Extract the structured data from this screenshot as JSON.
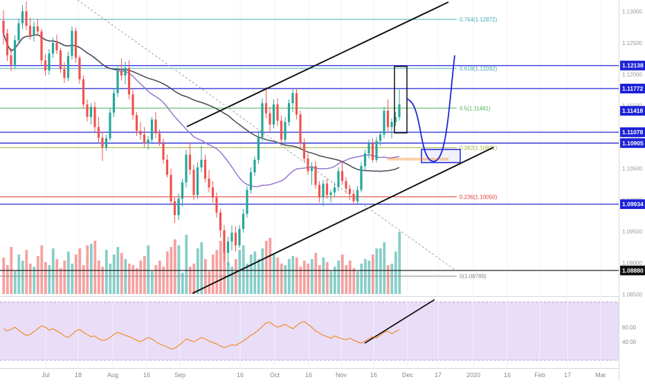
{
  "colors": {
    "up": "#26a69a",
    "down": "#ef5350",
    "ma_fast": "#9575cd",
    "ma_slow": "#434651",
    "hline": "#1e22d6",
    "rsi_line": "#f57c00",
    "rsi_bg": "#e9ddf7",
    "fib_764": "#40a9b5",
    "fib_618": "#40a9b5",
    "fib_5": "#4caf50",
    "fib_382": "#a5b43a",
    "fib_236": "#e53935",
    "fib_0": "#888888"
  },
  "chart_data": {
    "type": "candlestick",
    "instrument_hint": "EUR/USD daily",
    "price_axis": {
      "range": [
        1.0845,
        1.1318
      ],
      "ticks": [
        "1.13000",
        "1.12500",
        "1.12000",
        "1.11500",
        "1.11000",
        "1.10500",
        "1.10000",
        "1.09500",
        "1.09000",
        "1.08500"
      ]
    },
    "time_axis": {
      "labels": [
        "Jul",
        "18",
        "Aug",
        "16",
        "Sep",
        "16",
        "Oct",
        "16",
        "Nov",
        "16",
        "Dec",
        "17",
        "2020",
        "16",
        "Feb",
        "17",
        "Mar",
        "17"
      ]
    },
    "price_labels": [
      "1.12138",
      "1.11772",
      "1.11418",
      "1.11078",
      "1.10905",
      "1.09934",
      "1.08880"
    ],
    "horizontal_lines": [
      1.12138,
      1.11772,
      1.11078,
      1.10905,
      1.09934,
      1.0888
    ],
    "fibonacci": [
      {
        "label": "0.764(1.12872)",
        "level": 1.12872,
        "color_key": "fib_764"
      },
      {
        "label": "0.618(1.12092)",
        "level": 1.12092,
        "color_key": "fib_618"
      },
      {
        "label": "0.5(1.11461)",
        "level": 1.11461,
        "color_key": "fib_5"
      },
      {
        "label": "0.382(1.10831)",
        "level": 1.10831,
        "color_key": "fib_382"
      },
      {
        "label": "0.236(1.10050)",
        "level": 1.1005,
        "color_key": "fib_236"
      },
      {
        "label": "0(1.08789)",
        "level": 1.08789,
        "color_key": "fib_0"
      }
    ],
    "candles": [
      [
        1.1285,
        1.1302,
        1.1247,
        1.1265
      ],
      [
        1.1265,
        1.1272,
        1.1221,
        1.123
      ],
      [
        1.123,
        1.1242,
        1.1205,
        1.1215
      ],
      [
        1.1215,
        1.1262,
        1.1208,
        1.1254
      ],
      [
        1.1254,
        1.1288,
        1.1248,
        1.1281
      ],
      [
        1.1281,
        1.131,
        1.1272,
        1.13
      ],
      [
        1.13,
        1.1316,
        1.127,
        1.1277
      ],
      [
        1.1277,
        1.129,
        1.1255,
        1.1262
      ],
      [
        1.1262,
        1.1284,
        1.1252,
        1.1276
      ],
      [
        1.1276,
        1.1288,
        1.1262,
        1.1268
      ],
      [
        1.1268,
        1.1272,
        1.1215,
        1.1222
      ],
      [
        1.1222,
        1.1232,
        1.1198,
        1.1206
      ],
      [
        1.1206,
        1.124,
        1.1199,
        1.1233
      ],
      [
        1.1233,
        1.1258,
        1.1226,
        1.125
      ],
      [
        1.125,
        1.1263,
        1.1232,
        1.1238
      ],
      [
        1.1238,
        1.1242,
        1.1202,
        1.1208
      ],
      [
        1.1208,
        1.1219,
        1.1186,
        1.1194
      ],
      [
        1.1194,
        1.1236,
        1.1189,
        1.1229
      ],
      [
        1.1229,
        1.1276,
        1.1223,
        1.1269
      ],
      [
        1.1269,
        1.1274,
        1.1218,
        1.1226
      ],
      [
        1.1226,
        1.123,
        1.1185,
        1.1192
      ],
      [
        1.1192,
        1.1198,
        1.1145,
        1.1152
      ],
      [
        1.1152,
        1.116,
        1.1125,
        1.1132
      ],
      [
        1.1132,
        1.1154,
        1.112,
        1.1148
      ],
      [
        1.1148,
        1.1156,
        1.1108,
        1.1116
      ],
      [
        1.1116,
        1.1132,
        1.109,
        1.1099
      ],
      [
        1.1099,
        1.1108,
        1.1062,
        1.1084
      ],
      [
        1.1084,
        1.1104,
        1.1078,
        1.1098
      ],
      [
        1.1098,
        1.1146,
        1.1094,
        1.1139
      ],
      [
        1.1139,
        1.1178,
        1.1132,
        1.117
      ],
      [
        1.117,
        1.1212,
        1.1164,
        1.1205
      ],
      [
        1.1205,
        1.1225,
        1.119,
        1.1198
      ],
      [
        1.1198,
        1.122,
        1.1184,
        1.121
      ],
      [
        1.121,
        1.1222,
        1.116,
        1.1168
      ],
      [
        1.1168,
        1.1176,
        1.1128,
        1.1135
      ],
      [
        1.1135,
        1.114,
        1.1102,
        1.111
      ],
      [
        1.111,
        1.1124,
        1.1096,
        1.1104
      ],
      [
        1.1104,
        1.1116,
        1.1084,
        1.109
      ],
      [
        1.109,
        1.1102,
        1.108,
        1.1096
      ],
      [
        1.1096,
        1.1132,
        1.1092,
        1.1128
      ],
      [
        1.1128,
        1.114,
        1.1098,
        1.1106
      ],
      [
        1.1106,
        1.1112,
        1.1086,
        1.1092
      ],
      [
        1.1092,
        1.1098,
        1.1058,
        1.1064
      ],
      [
        1.1064,
        1.1072,
        1.1036,
        1.104
      ],
      [
        1.104,
        1.105,
        1.0992,
        1.0998
      ],
      [
        1.0998,
        1.1004,
        1.0964,
        1.0976
      ],
      [
        1.0976,
        1.101,
        1.0968,
        1.1002
      ],
      [
        1.1002,
        1.1034,
        1.099,
        1.1028
      ],
      [
        1.1028,
        1.108,
        1.102,
        1.1072
      ],
      [
        1.1072,
        1.1092,
        1.104,
        1.1048
      ],
      [
        1.1048,
        1.1056,
        1.1,
        1.1008
      ],
      [
        1.1008,
        1.106,
        1.1002,
        1.1052
      ],
      [
        1.1052,
        1.1086,
        1.1044,
        1.1064
      ],
      [
        1.1064,
        1.1072,
        1.1028,
        1.1034
      ],
      [
        1.1034,
        1.1048,
        1.1012,
        1.102
      ],
      [
        1.102,
        1.103,
        1.0996,
        1.1004
      ],
      [
        1.1004,
        1.1012,
        1.0972,
        1.098
      ],
      [
        1.098,
        1.0986,
        1.094,
        1.0952
      ],
      [
        1.0952,
        1.096,
        1.0904,
        1.0916
      ],
      [
        1.0916,
        1.0942,
        1.0896,
        1.0934
      ],
      [
        1.0934,
        1.096,
        1.092,
        1.0948
      ],
      [
        1.0948,
        1.0958,
        1.0918,
        1.0928
      ],
      [
        1.0928,
        1.096,
        1.0924,
        1.0954
      ],
      [
        1.0954,
        1.0986,
        1.0948,
        1.0978
      ],
      [
        1.0978,
        1.1022,
        1.0972,
        1.1016
      ],
      [
        1.1016,
        1.1052,
        1.101,
        1.1044
      ],
      [
        1.1044,
        1.107,
        1.1038,
        1.1064
      ],
      [
        1.1064,
        1.111,
        1.1058,
        1.11
      ],
      [
        1.11,
        1.1162,
        1.1094,
        1.1154
      ],
      [
        1.1154,
        1.118,
        1.113,
        1.1138
      ],
      [
        1.1138,
        1.1148,
        1.1108,
        1.112
      ],
      [
        1.112,
        1.116,
        1.1114,
        1.1152
      ],
      [
        1.1152,
        1.1162,
        1.1118,
        1.1126
      ],
      [
        1.1126,
        1.1134,
        1.109,
        1.1096
      ],
      [
        1.1096,
        1.1132,
        1.1088,
        1.1124
      ],
      [
        1.1124,
        1.116,
        1.1118,
        1.1154
      ],
      [
        1.1154,
        1.1176,
        1.114,
        1.117
      ],
      [
        1.117,
        1.1178,
        1.1128,
        1.1136
      ],
      [
        1.1136,
        1.1142,
        1.1084,
        1.109
      ],
      [
        1.109,
        1.1098,
        1.106,
        1.1066
      ],
      [
        1.1066,
        1.1074,
        1.104,
        1.1046
      ],
      [
        1.1046,
        1.106,
        1.1024,
        1.1054
      ],
      [
        1.1054,
        1.1062,
        1.1018,
        1.1024
      ],
      [
        1.1024,
        1.103,
        1.0996,
        1.1004
      ],
      [
        1.1004,
        1.1032,
        1.099,
        1.1026
      ],
      [
        1.1026,
        1.1034,
        1.1002,
        1.1008
      ],
      [
        1.1008,
        1.1016,
        1.0996,
        1.1012
      ],
      [
        1.1012,
        1.1028,
        1.1004,
        1.102
      ],
      [
        1.102,
        1.1052,
        1.1014,
        1.1046
      ],
      [
        1.1046,
        1.1062,
        1.1024,
        1.103
      ],
      [
        1.103,
        1.1036,
        1.101,
        1.1018
      ],
      [
        1.1018,
        1.1024,
        1.1,
        1.101
      ],
      [
        1.101,
        1.1016,
        1.0992,
        1.0998
      ],
      [
        1.0998,
        1.1022,
        1.0994,
        1.1016
      ],
      [
        1.1016,
        1.106,
        1.1012,
        1.1054
      ],
      [
        1.1054,
        1.108,
        1.1048,
        1.1074
      ],
      [
        1.1074,
        1.1096,
        1.1066,
        1.109
      ],
      [
        1.109,
        1.1098,
        1.106,
        1.1064
      ],
      [
        1.1064,
        1.11,
        1.106,
        1.1094
      ],
      [
        1.1094,
        1.111,
        1.1086,
        1.1104
      ],
      [
        1.1104,
        1.1148,
        1.1098,
        1.1142
      ],
      [
        1.1142,
        1.116,
        1.1108,
        1.1116
      ],
      [
        1.1116,
        1.113,
        1.1098,
        1.1124
      ],
      [
        1.1124,
        1.114,
        1.1118,
        1.1132
      ],
      [
        1.1132,
        1.1178,
        1.1126,
        1.1152
      ]
    ],
    "volume": [
      48,
      38,
      62,
      30,
      52,
      44,
      58,
      40,
      36,
      50,
      64,
      42,
      38,
      60,
      46,
      34,
      44,
      56,
      40,
      52,
      60,
      38,
      64,
      66,
      70,
      44,
      36,
      58,
      40,
      52,
      62,
      54,
      46,
      40,
      38,
      34,
      44,
      50,
      64,
      30,
      38,
      44,
      36,
      56,
      62,
      72,
      64,
      28,
      78,
      36,
      40,
      60,
      68,
      46,
      30,
      52,
      58,
      70,
      54,
      42,
      36,
      46,
      58,
      64,
      40,
      52,
      56,
      46,
      60,
      70,
      74,
      52,
      48,
      40,
      38,
      46,
      50,
      48,
      36,
      44,
      40,
      46,
      54,
      38,
      48,
      42,
      30,
      36,
      44,
      52,
      38,
      44,
      34,
      30,
      40,
      46,
      44,
      52,
      60,
      60,
      68,
      38,
      40,
      56,
      82
    ],
    "rsi": {
      "ticks": [
        "60.00",
        "40.00"
      ],
      "values": [
        58,
        55,
        57,
        60,
        56,
        52,
        49,
        50,
        54,
        58,
        62,
        60,
        56,
        58,
        55,
        52,
        48,
        46,
        50,
        55,
        57,
        53,
        50,
        47,
        48,
        44,
        42,
        43,
        46,
        50,
        53,
        51,
        49,
        47,
        45,
        42,
        40,
        43,
        46,
        44,
        40,
        37,
        35,
        33,
        30,
        31,
        35,
        39,
        44,
        42,
        40,
        43,
        46,
        44,
        41,
        39,
        37,
        34,
        32,
        34,
        36,
        35,
        38,
        41,
        45,
        49,
        52,
        56,
        61,
        66,
        67,
        63,
        60,
        62,
        64,
        61,
        58,
        62,
        66,
        68,
        64,
        60,
        55,
        52,
        49,
        47,
        45,
        48,
        46,
        44,
        43,
        45,
        42,
        40,
        38,
        41,
        44,
        47,
        45,
        49,
        53,
        55,
        51,
        54,
        57
      ]
    }
  }
}
